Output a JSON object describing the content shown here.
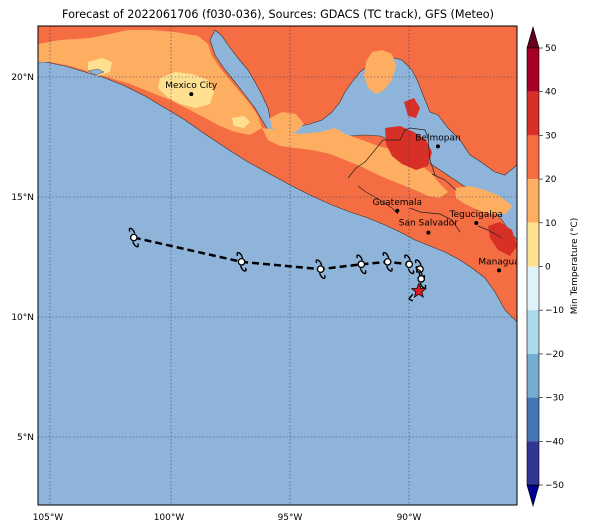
{
  "title": "Forecast of 2022061706 (f030-036), Sources: GDACS (TC track), GFS (Meteo)",
  "colorbar": {
    "label": "Min Temperature (°C)",
    "ticks": [
      "50",
      "40",
      "30",
      "20",
      "10",
      "0",
      "−10",
      "−20",
      "−30",
      "−40",
      "−50"
    ],
    "colors": [
      "#a50026",
      "#d73027",
      "#f46d43",
      "#fdae61",
      "#fee090",
      "#e0f3f8",
      "#abd9e9",
      "#74add1",
      "#4575b4",
      "#313695"
    ],
    "max_color": "#67001f",
    "min_color": "#000090"
  },
  "axes": {
    "x_ticks": [
      "105°W",
      "100°W",
      "95°W",
      "90°W"
    ],
    "y_ticks": [
      "20°N",
      "15°N",
      "10°N",
      "5°N"
    ],
    "lon_range": [
      -105.5,
      -85.5
    ],
    "lat_range": [
      2.5,
      22.2
    ]
  },
  "colors": {
    "ocean": "#8fb4d9",
    "land_warm": "#fdae61",
    "land_hot": "#f46d43",
    "land_hotter": "#d73027",
    "land_mild": "#fee090",
    "storm_marker": "#e41a1c"
  },
  "cities": [
    {
      "name": "Mexico City",
      "lon": -99.1,
      "lat": 19.4
    },
    {
      "name": "Belmopan",
      "lon": -88.8,
      "lat": 17.25
    },
    {
      "name": "Guatemala",
      "lon": -90.5,
      "lat": 14.6
    },
    {
      "name": "San Salvador",
      "lon": -89.2,
      "lat": 13.7
    },
    {
      "name": "Tegucigalpa",
      "lon": -87.2,
      "lat": 14.1
    },
    {
      "name": "Managua",
      "lon": -86.25,
      "lat": 12.15
    }
  ],
  "track": [
    {
      "lon": -101.5,
      "lat": 13.5
    },
    {
      "lon": -97.0,
      "lat": 12.5
    },
    {
      "lon": -93.7,
      "lat": 12.2
    },
    {
      "lon": -92.0,
      "lat": 12.4
    },
    {
      "lon": -90.9,
      "lat": 12.5
    },
    {
      "lon": -90.0,
      "lat": 12.4
    },
    {
      "lon": -89.55,
      "lat": 12.2
    },
    {
      "lon": -89.5,
      "lat": 11.8
    }
  ],
  "current_position": {
    "lon": -89.6,
    "lat": 11.3
  }
}
